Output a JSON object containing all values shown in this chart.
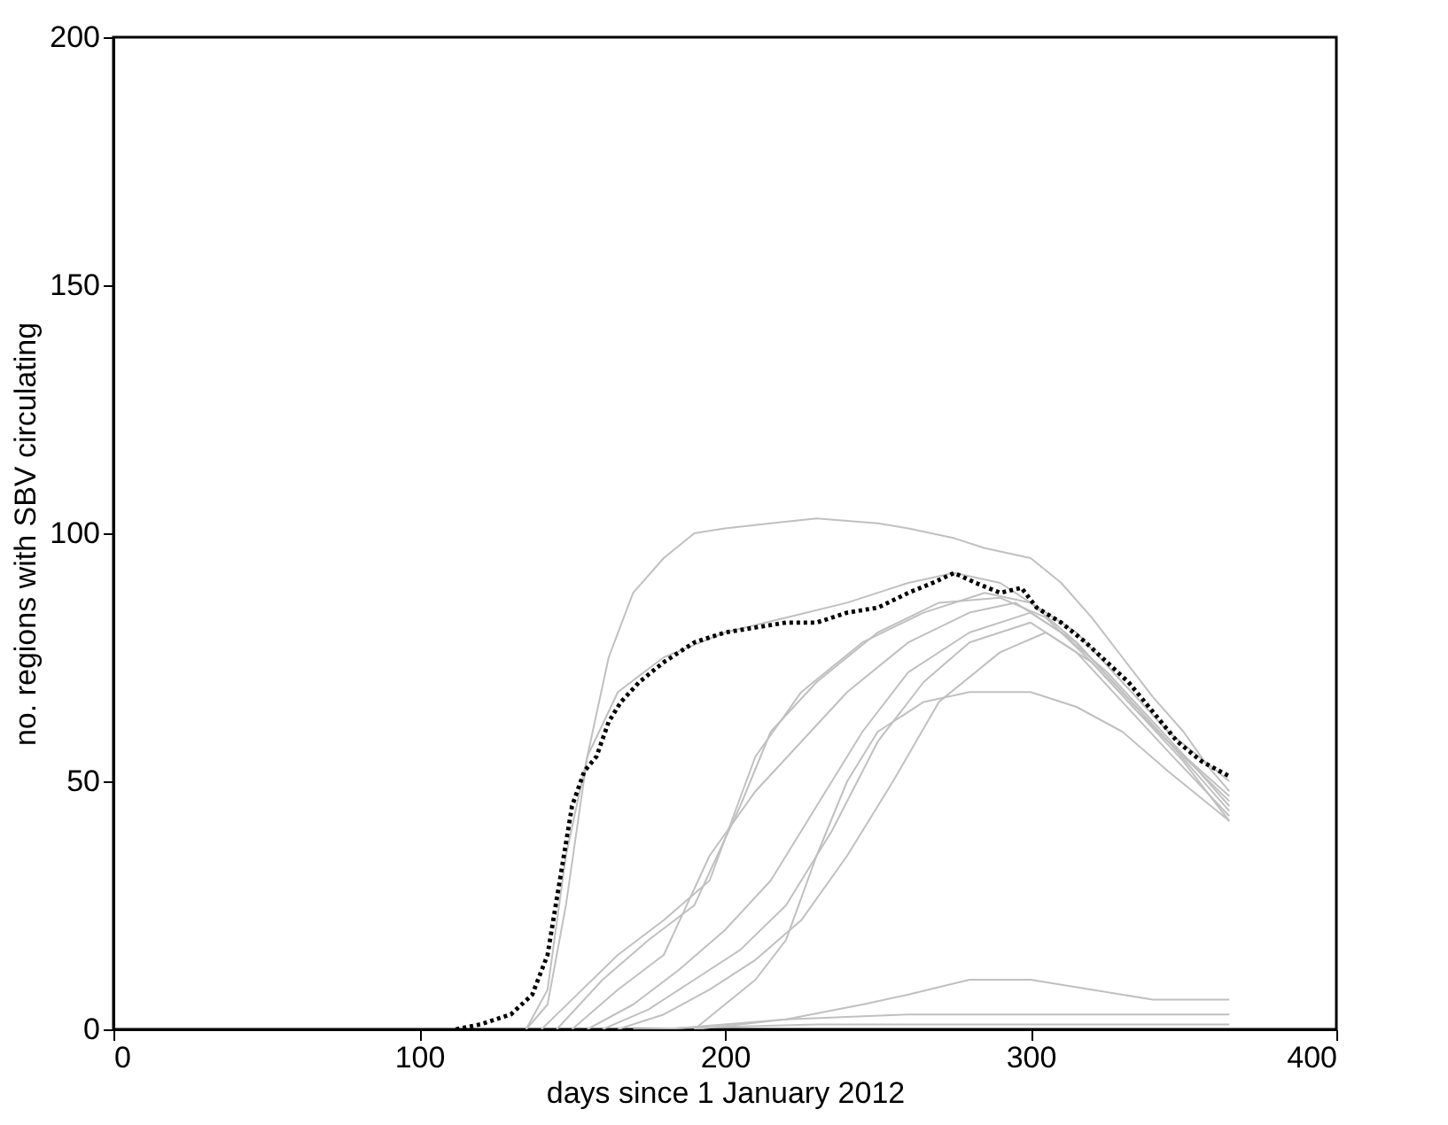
{
  "chart_data": {
    "type": "line",
    "xlabel": "days since 1 January 2012",
    "ylabel": "no. regions with SBV circulating",
    "xlim": [
      0,
      400
    ],
    "ylim": [
      0,
      200
    ],
    "xticks": [
      0,
      100,
      200,
      300,
      400
    ],
    "yticks": [
      0,
      50,
      100,
      150,
      200
    ],
    "grid": false,
    "series": [
      {
        "color": "#c0c0c0",
        "x": [
          135,
          142,
          148,
          155,
          162,
          170,
          180,
          190,
          200,
          215,
          230,
          250,
          260,
          275,
          285,
          300,
          310,
          320,
          330,
          340,
          350,
          358,
          365
        ],
        "values": [
          0,
          5,
          25,
          55,
          75,
          88,
          95,
          100,
          101,
          102,
          103,
          102,
          101,
          99,
          97,
          95,
          90,
          83,
          75,
          67,
          60,
          53,
          48
        ]
      },
      {
        "color": "#c0c0c0",
        "x": [
          135,
          142,
          148,
          155,
          165,
          180,
          200,
          220,
          240,
          260,
          275,
          290,
          300,
          315,
          330,
          345,
          365
        ],
        "values": [
          0,
          8,
          35,
          55,
          68,
          75,
          80,
          83,
          86,
          90,
          92,
          90,
          86,
          80,
          70,
          60,
          50
        ]
      },
      {
        "color": "#c0c0c0",
        "x": [
          140,
          150,
          165,
          180,
          195,
          210,
          225,
          245,
          265,
          285,
          300,
          315,
          330,
          345,
          365
        ],
        "values": [
          0,
          6,
          15,
          22,
          30,
          55,
          68,
          78,
          84,
          88,
          86,
          78,
          68,
          58,
          47
        ]
      },
      {
        "color": "#c0c0c0",
        "x": [
          145,
          160,
          175,
          190,
          205,
          215,
          230,
          250,
          270,
          290,
          305,
          320,
          335,
          350,
          365
        ],
        "values": [
          0,
          10,
          18,
          25,
          45,
          60,
          70,
          80,
          86,
          87,
          83,
          74,
          64,
          55,
          46
        ]
      },
      {
        "color": "#c0c0c0",
        "x": [
          150,
          165,
          180,
          195,
          210,
          225,
          240,
          260,
          280,
          295,
          310,
          325,
          340,
          355,
          365
        ],
        "values": [
          0,
          8,
          15,
          35,
          48,
          58,
          68,
          78,
          84,
          86,
          80,
          72,
          62,
          52,
          45
        ]
      },
      {
        "color": "#c0c0c0",
        "x": [
          155,
          170,
          185,
          200,
          215,
          230,
          245,
          260,
          280,
          300,
          315,
          330,
          345,
          365
        ],
        "values": [
          0,
          5,
          12,
          20,
          30,
          45,
          60,
          72,
          80,
          84,
          78,
          68,
          58,
          44
        ]
      },
      {
        "color": "#c0c0c0",
        "x": [
          160,
          175,
          190,
          205,
          220,
          235,
          250,
          265,
          280,
          300,
          315,
          330,
          345,
          365
        ],
        "values": [
          0,
          4,
          10,
          16,
          25,
          40,
          58,
          70,
          78,
          82,
          76,
          66,
          56,
          43
        ]
      },
      {
        "color": "#c0c0c0",
        "x": [
          165,
          180,
          195,
          210,
          225,
          240,
          255,
          270,
          290,
          305,
          320,
          335,
          350,
          365
        ],
        "values": [
          0,
          3,
          8,
          14,
          22,
          35,
          50,
          66,
          76,
          80,
          74,
          64,
          54,
          42
        ]
      },
      {
        "color": "#c0c0c0",
        "x": [
          190,
          200,
          210,
          220,
          230,
          240,
          250,
          265,
          280,
          300,
          315,
          330,
          345,
          365
        ],
        "values": [
          0,
          5,
          10,
          18,
          35,
          50,
          60,
          66,
          68,
          68,
          65,
          60,
          52,
          42
        ]
      },
      {
        "color": "#c0c0c0",
        "x": [
          190,
          220,
          245,
          260,
          280,
          300,
          320,
          340,
          365
        ],
        "values": [
          0,
          2,
          5,
          7,
          10,
          10,
          8,
          6,
          6
        ]
      },
      {
        "color": "#c0c0c0",
        "x": [
          180,
          220,
          260,
          300,
          340,
          365
        ],
        "values": [
          0,
          2,
          3,
          3,
          3,
          3
        ]
      },
      {
        "color": "#c0c0c0",
        "x": [
          170,
          230,
          290,
          340,
          365
        ],
        "values": [
          0,
          1,
          1,
          1,
          1
        ]
      },
      {
        "color": "#000000",
        "line_style": "dotted",
        "x": [
          112,
          120,
          130,
          137,
          142,
          146,
          150,
          154,
          158,
          162,
          166,
          172,
          180,
          190,
          200,
          210,
          220,
          230,
          240,
          250,
          260,
          268,
          275,
          282,
          290,
          297,
          302,
          310,
          318,
          325,
          332,
          340,
          348,
          356,
          365
        ],
        "values": [
          0,
          1,
          3,
          7,
          15,
          30,
          45,
          52,
          55,
          62,
          66,
          70,
          74,
          78,
          80,
          81,
          82,
          82,
          84,
          85,
          88,
          90,
          92,
          90,
          88,
          89,
          85,
          82,
          78,
          74,
          70,
          64,
          58,
          54,
          51
        ]
      }
    ]
  }
}
